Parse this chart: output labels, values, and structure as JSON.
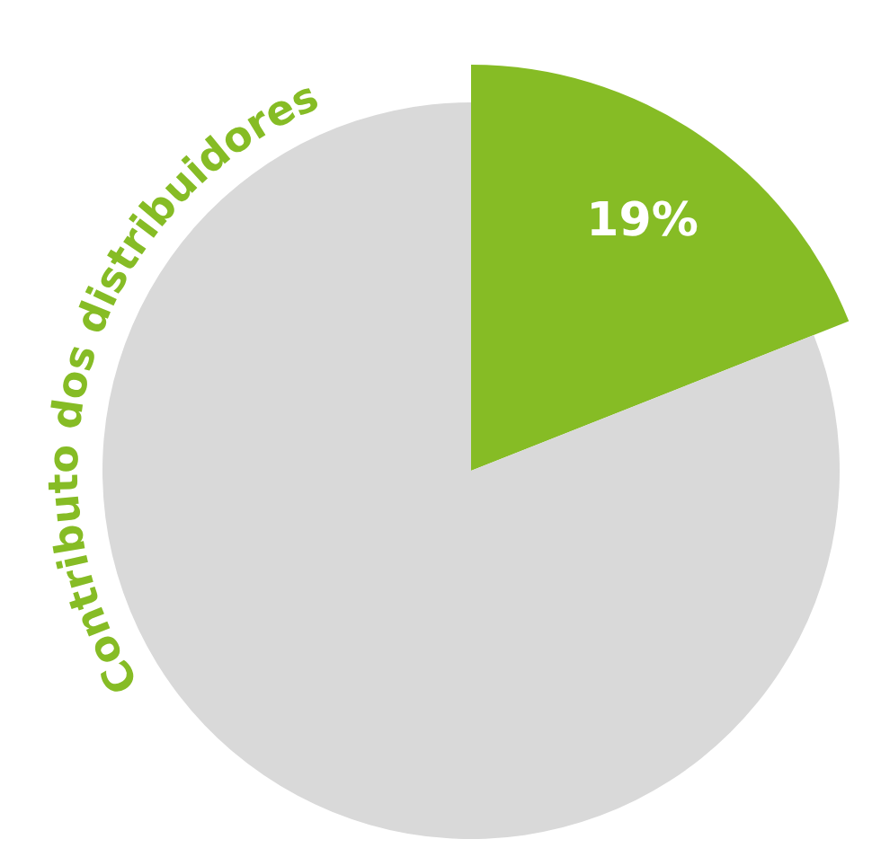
{
  "chart_data": {
    "type": "pie",
    "categories": [
      null,
      null
    ],
    "values": [
      19,
      81
    ],
    "colors": [
      "#86bc25",
      "#d9d9d9"
    ],
    "value_labels": [
      "19%",
      null
    ],
    "annotations": [
      "Contributo dos distribuidores"
    ]
  }
}
